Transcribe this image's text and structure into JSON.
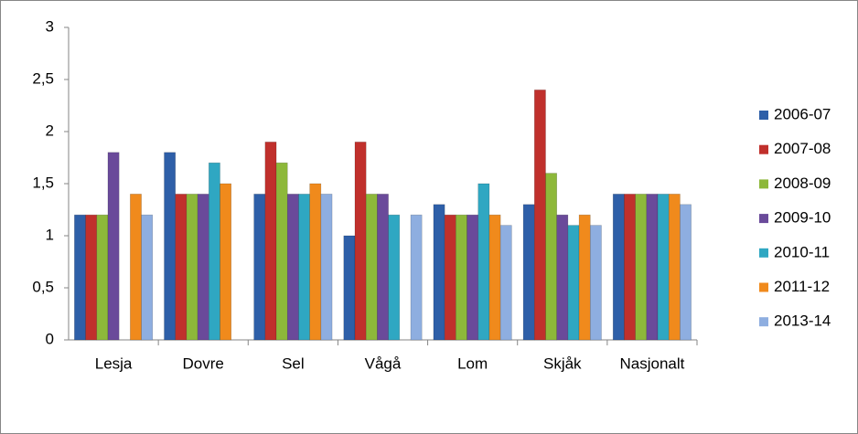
{
  "chart_data": {
    "type": "bar",
    "categories": [
      "Lesja",
      "Dovre",
      "Sel",
      "Vågå",
      "Lom",
      "Skjåk",
      "Nasjonalt"
    ],
    "series": [
      {
        "name": "2006-07",
        "color": "#2e5fa8",
        "values": [
          1.2,
          1.8,
          1.4,
          1.0,
          1.3,
          1.3,
          1.4
        ]
      },
      {
        "name": "2007-08",
        "color": "#c0302c",
        "values": [
          1.2,
          1.4,
          1.9,
          1.9,
          1.2,
          2.4,
          1.4
        ]
      },
      {
        "name": "2008-09",
        "color": "#8db83a",
        "values": [
          1.2,
          1.4,
          1.7,
          1.4,
          1.2,
          1.6,
          1.4
        ]
      },
      {
        "name": "2009-10",
        "color": "#6a4a9a",
        "values": [
          1.8,
          1.4,
          1.4,
          1.4,
          1.2,
          1.2,
          1.4
        ]
      },
      {
        "name": "2010-11",
        "color": "#2fa7c2",
        "values": [
          null,
          1.7,
          1.4,
          1.2,
          1.5,
          1.1,
          1.4
        ]
      },
      {
        "name": "2011-12",
        "color": "#f08a1c",
        "values": [
          1.4,
          1.5,
          1.5,
          null,
          1.2,
          1.2,
          1.4
        ]
      },
      {
        "name": "2013-14",
        "color": "#8eaee0",
        "values": [
          1.2,
          null,
          1.4,
          1.2,
          1.1,
          1.1,
          1.3
        ]
      }
    ],
    "ylim": [
      0,
      3
    ],
    "yticks": [
      0,
      {
        "value": 0.5,
        "label": "0,5"
      },
      1,
      {
        "value": 1.5,
        "label": "1,5"
      },
      2,
      {
        "value": 2.5,
        "label": "2,5"
      },
      3
    ],
    "legend": "right"
  }
}
